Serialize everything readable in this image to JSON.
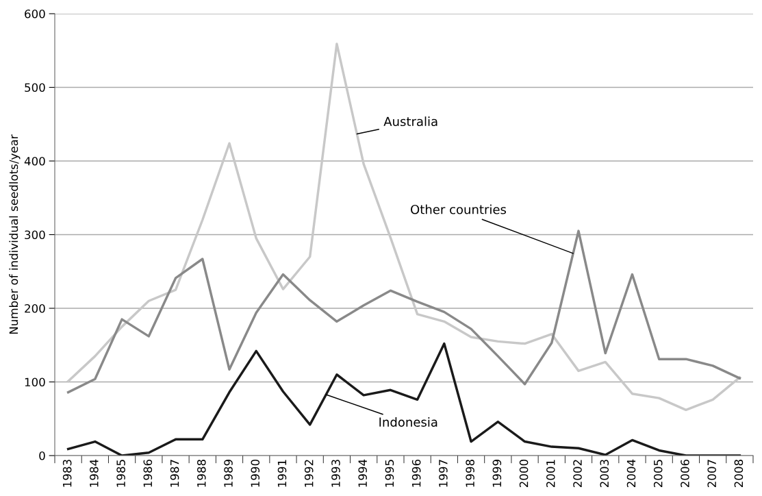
{
  "chart_data": {
    "type": "line",
    "ylabel": "Number of individual seedlots/year",
    "categories": [
      "1983",
      "1984",
      "1985",
      "1986",
      "1987",
      "1988",
      "1989",
      "1990",
      "1991",
      "1992",
      "1993",
      "1994",
      "1995",
      "1996",
      "1997",
      "1998",
      "1999",
      "2000",
      "2001",
      "2002",
      "2003",
      "2004",
      "2005",
      "2006",
      "2007",
      "2008"
    ],
    "series": [
      {
        "name": "Australia",
        "color": "#c8c8c8",
        "values": [
          101,
          135,
          175,
          210,
          225,
          320,
          424,
          295,
          226,
          270,
          559,
          396,
          296,
          192,
          182,
          161,
          155,
          152,
          165,
          115,
          127,
          84,
          78,
          62,
          76,
          106
        ]
      },
      {
        "name": "Other countries",
        "color": "#898989",
        "values": [
          86,
          104,
          185,
          162,
          241,
          267,
          117,
          194,
          246,
          211,
          182,
          204,
          224,
          209,
          195,
          172,
          135,
          97,
          153,
          305,
          139,
          246,
          131,
          131,
          122,
          105
        ]
      },
      {
        "name": "Indonesia",
        "color": "#1a1a1a",
        "values": [
          9,
          19,
          0,
          4,
          22,
          22,
          86,
          142,
          87,
          42,
          110,
          82,
          89,
          76,
          152,
          19,
          46,
          19,
          12,
          10,
          1,
          21,
          7,
          0,
          0,
          0
        ]
      }
    ],
    "ylim": [
      0,
      600
    ],
    "yticks": [
      0,
      100,
      200,
      300,
      400,
      500,
      600
    ],
    "grid": "y",
    "line_style": "solid",
    "marker": "none"
  }
}
